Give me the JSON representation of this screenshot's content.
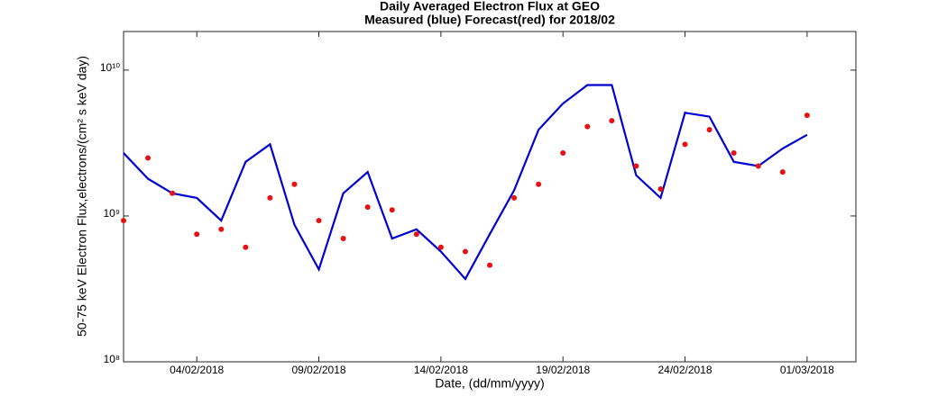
{
  "chart_data": {
    "type": "line",
    "title": "Daily Averaged Electron Flux at GEO",
    "subtitle": "Measured (blue) Forecast(red) for 2018/02",
    "x_label": "Date, (dd/mm/yyyy)",
    "y_label": "50-75 keV Electron Flux,electrons/(cm² s keV day)",
    "log_y": true,
    "x": [
      "2018-02-01",
      "2018-02-02",
      "2018-02-03",
      "2018-02-04",
      "2018-02-05",
      "2018-02-06",
      "2018-02-07",
      "2018-02-08",
      "2018-02-09",
      "2018-02-10",
      "2018-02-11",
      "2018-02-12",
      "2018-02-13",
      "2018-02-14",
      "2018-02-15",
      "2018-02-16",
      "2018-02-17",
      "2018-02-18",
      "2018-02-19",
      "2018-02-20",
      "2018-02-21",
      "2018-02-22",
      "2018-02-23",
      "2018-02-24",
      "2018-02-25",
      "2018-02-26",
      "2018-02-27",
      "2018-02-28",
      "2018-03-01"
    ],
    "series": [
      {
        "name": "Measured",
        "color": "#0000d0",
        "style": "line",
        "values": [
          2700000000.0,
          1800000000.0,
          1430000000.0,
          1330000000.0,
          930000000.0,
          2350000000.0,
          3100000000.0,
          870000000.0,
          430000000.0,
          1430000000.0,
          2000000000.0,
          700000000.0,
          810000000.0,
          570000000.0,
          370000000.0,
          750000000.0,
          1500000000.0,
          3900000000.0,
          5900000000.0,
          7900000000.0,
          7900000000.0,
          1900000000.0,
          1330000000.0,
          5100000000.0,
          4800000000.0,
          2350000000.0,
          2200000000.0,
          2900000000.0,
          3600000000.0
        ]
      },
      {
        "name": "Forecast",
        "color": "#e81010",
        "style": "markers",
        "values": [
          930000000.0,
          2500000000.0,
          1430000000.0,
          750000000.0,
          810000000.0,
          610000000.0,
          1330000000.0,
          1650000000.0,
          930000000.0,
          700000000.0,
          1150000000.0,
          1100000000.0,
          750000000.0,
          610000000.0,
          570000000.0,
          460000000.0,
          1330000000.0,
          1650000000.0,
          2700000000.0,
          4100000000.0,
          4500000000.0,
          2200000000.0,
          1530000000.0,
          3100000000.0,
          3900000000.0,
          2700000000.0,
          2200000000.0,
          2000000000.0,
          4900000000.0
        ]
      }
    ],
    "xlim": [
      "2018-02-01",
      "2018-03-03"
    ],
    "xticks": [
      {
        "value": "2018-02-04",
        "label": "04/02/2018"
      },
      {
        "value": "2018-02-09",
        "label": "09/02/2018"
      },
      {
        "value": "2018-02-14",
        "label": "14/02/2018"
      },
      {
        "value": "2018-02-19",
        "label": "19/02/2018"
      },
      {
        "value": "2018-02-24",
        "label": "24/02/2018"
      },
      {
        "value": "2018-03-01",
        "label": "01/03/2018"
      }
    ],
    "ylim": [
      100000000.0,
      18400000000.0
    ],
    "yticks": [
      {
        "value": 100000000.0,
        "label": "10⁸"
      },
      {
        "value": 1000000000.0,
        "label": "10⁹"
      },
      {
        "value": 10000000000.0,
        "label": "10¹⁰"
      }
    ]
  }
}
